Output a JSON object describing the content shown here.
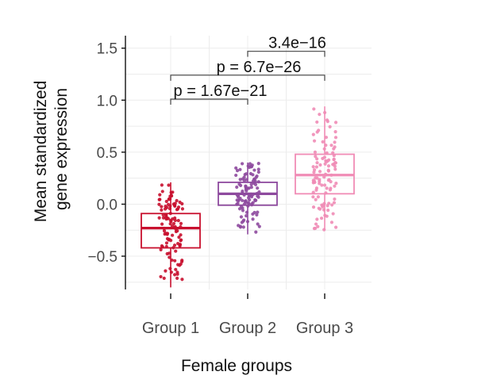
{
  "chart_data": {
    "type": "box",
    "title": "",
    "xlabel": "Female groups",
    "ylabel_lines": [
      "Mean standardized",
      "gene expression"
    ],
    "ylim": [
      -0.82,
      1.62
    ],
    "yticks": [
      -0.5,
      0.0,
      0.5,
      1.0,
      1.5
    ],
    "ytick_labels": [
      "−0.5",
      "0.0",
      "0.5",
      "1.0",
      "1.5"
    ],
    "grid": true,
    "categories": [
      "Group 1",
      "Group 2",
      "Group 3"
    ],
    "series": [
      {
        "name": "Group 1",
        "color": "#c8102e",
        "q1": -0.42,
        "median": -0.23,
        "q3": -0.09,
        "min": -0.8,
        "max": 0.21,
        "n": 110
      },
      {
        "name": "Group 2",
        "color": "#8e4a9e",
        "q1": -0.01,
        "median": 0.1,
        "q3": 0.21,
        "min": -0.29,
        "max": 0.4,
        "n": 110
      },
      {
        "name": "Group 3",
        "color": "#f08cb6",
        "q1": 0.1,
        "median": 0.28,
        "q3": 0.48,
        "min": -0.25,
        "max": 0.94,
        "n": 110
      }
    ],
    "comparisons": [
      {
        "from": 0,
        "to": 1,
        "y": 1.01,
        "label": "p = 1.67e−21"
      },
      {
        "from": 0,
        "to": 2,
        "y": 1.24,
        "label": "p = 6.7e−26"
      },
      {
        "from": 1,
        "to": 2,
        "y": 1.47,
        "label": "3.4e−16"
      }
    ]
  }
}
